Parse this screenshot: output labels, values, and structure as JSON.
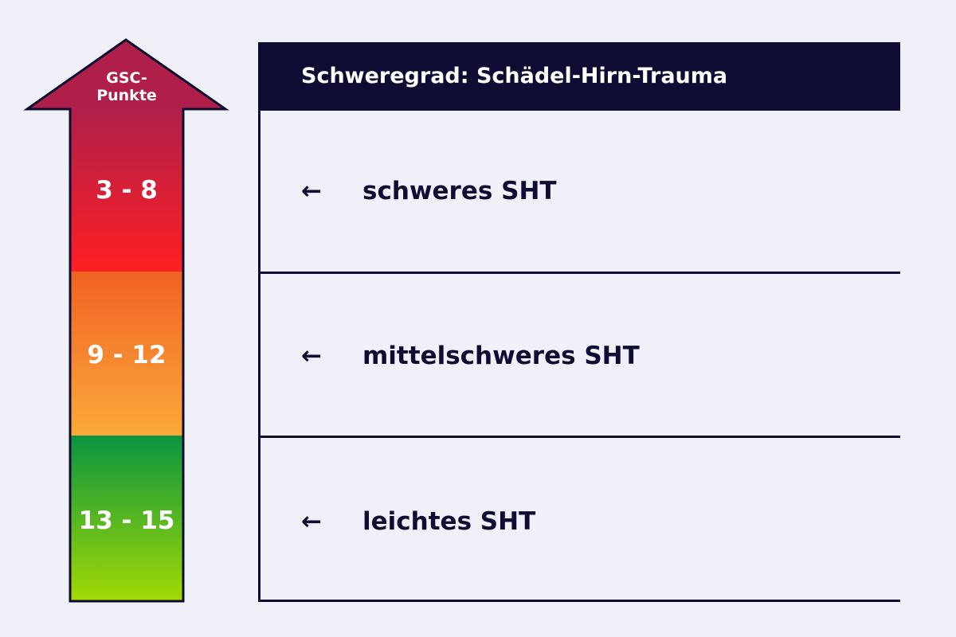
{
  "arrow": {
    "title_line1": "GSC-",
    "title_line2": "Punkte",
    "ranges": [
      "3 - 8",
      "9 - 12",
      "13 - 15"
    ]
  },
  "table": {
    "header": "Schweregrad: Schädel-Hirn-Trauma",
    "rows": [
      "schweres SHT",
      "mittelschweres SHT",
      "leichtes SHT"
    ],
    "arrow_glyph": "←"
  },
  "colors": {
    "background": "#eff0f8",
    "dark": "#0e0c33",
    "severe_top": "#b01f4a",
    "severe_bottom": "#fe1f23",
    "moderate_top": "#f06224",
    "moderate_bottom": "#fba93a",
    "mild_top": "#0a9440",
    "mild_bottom": "#a3d904"
  }
}
